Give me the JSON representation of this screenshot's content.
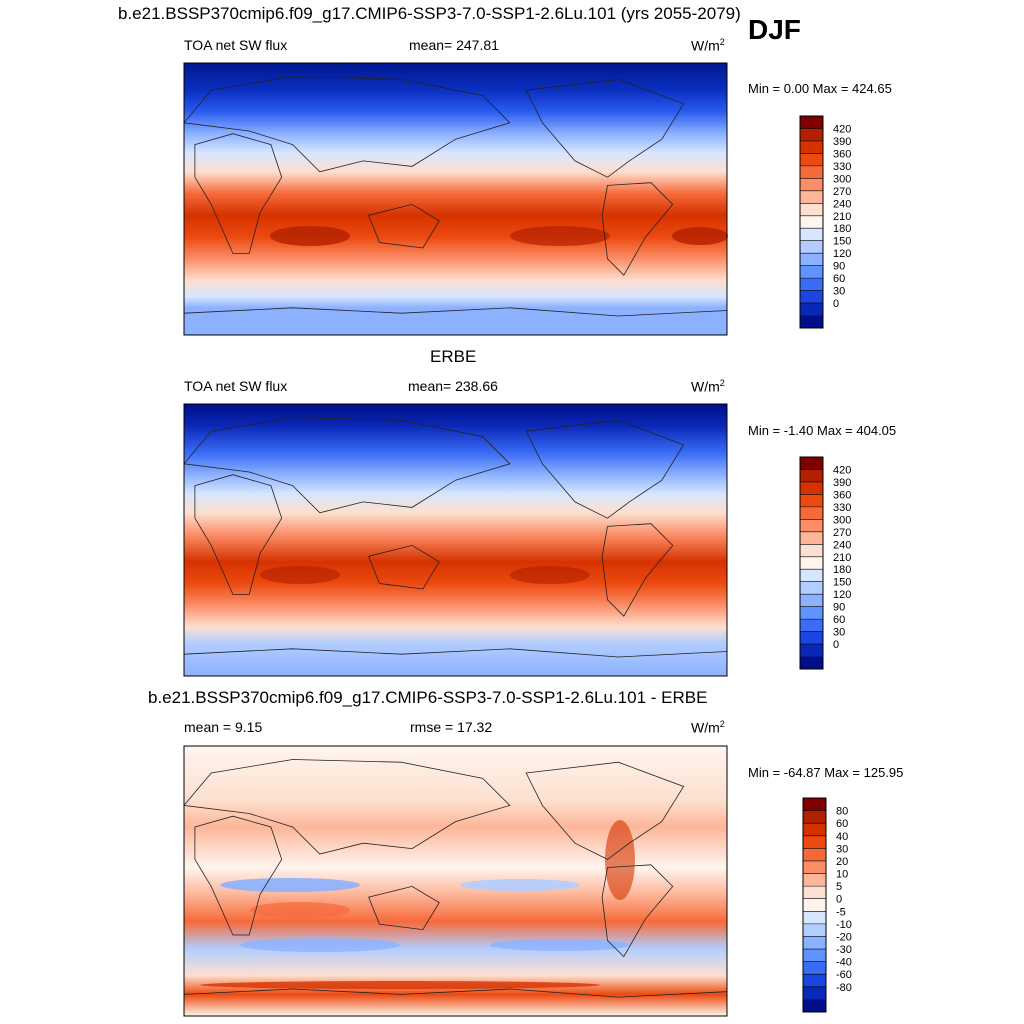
{
  "figure": {
    "title": "b.e21.BSSP370cmip6.f09_g17.CMIP6-SSP3-7.0-SSP1-2.6Lu.101 (yrs 2055-2079)",
    "season": "DJF"
  },
  "panels": [
    {
      "id": "model",
      "title": "",
      "left_label": "TOA net SW flux",
      "center_label": "mean= 247.81",
      "units": "W/m",
      "units_sup": "2",
      "minmax": "Min =   0.00 Max = 424.65"
    },
    {
      "id": "obs",
      "title": "ERBE",
      "left_label": "TOA net SW flux",
      "center_label": "mean= 238.66",
      "units": "W/m",
      "units_sup": "2",
      "minmax": "Min =  -1.40 Max = 404.05"
    },
    {
      "id": "diff",
      "title": "b.e21.BSSP370cmip6.f09_g17.CMIP6-SSP3-7.0-SSP1-2.6Lu.101 - ERBE",
      "left_label": "mean =   9.15",
      "center_label": "rmse =  17.32",
      "units": "W/m",
      "units_sup": "2",
      "minmax": "Min = -64.87 Max = 125.95"
    }
  ],
  "chart_data": [
    {
      "type": "heatmap",
      "title": "TOA net SW flux",
      "mean": 247.81,
      "min": 0.0,
      "max": 424.65,
      "colorbar_levels": [
        420,
        390,
        360,
        330,
        300,
        270,
        240,
        210,
        180,
        150,
        120,
        90,
        60,
        30,
        0
      ],
      "colorbar_colors": [
        "#7f0000",
        "#b22000",
        "#d63200",
        "#ec4a10",
        "#f66a3a",
        "#fb8e68",
        "#fdb69a",
        "#fde0cf",
        "#fff5ee",
        "#d6e6ff",
        "#b2cdff",
        "#8cb1ff",
        "#6193ff",
        "#3a6cf5",
        "#1a45e0",
        "#0a28b8",
        "#000f88"
      ]
    },
    {
      "type": "heatmap",
      "title": "TOA net SW flux",
      "mean": 238.66,
      "min": -1.4,
      "max": 404.05,
      "colorbar_levels": [
        420,
        390,
        360,
        330,
        300,
        270,
        240,
        210,
        180,
        150,
        120,
        90,
        60,
        30,
        0
      ],
      "colorbar_colors": [
        "#7f0000",
        "#b22000",
        "#d63200",
        "#ec4a10",
        "#f66a3a",
        "#fb8e68",
        "#fdb69a",
        "#fde0cf",
        "#fff5ee",
        "#d6e6ff",
        "#b2cdff",
        "#8cb1ff",
        "#6193ff",
        "#3a6cf5",
        "#1a45e0",
        "#0a28b8",
        "#000f88"
      ]
    },
    {
      "type": "heatmap",
      "title": "b.e21.BSSP370cmip6.f09_g17.CMIP6-SSP3-7.0-SSP1-2.6Lu.101 - ERBE",
      "mean": 9.15,
      "rmse": 17.32,
      "min": -64.87,
      "max": 125.95,
      "colorbar_levels": [
        80,
        60,
        40,
        30,
        20,
        10,
        5,
        0,
        -5,
        -10,
        -20,
        -30,
        -40,
        -60,
        -80
      ],
      "colorbar_colors": [
        "#7f0000",
        "#b22000",
        "#d63200",
        "#ec4a10",
        "#f66a3a",
        "#fb8e68",
        "#fdb69a",
        "#fde0cf",
        "#fff5ee",
        "#d6e6ff",
        "#b2cdff",
        "#8cb1ff",
        "#6193ff",
        "#3a6cf5",
        "#1a45e0",
        "#0a28b8",
        "#000f88"
      ]
    }
  ]
}
